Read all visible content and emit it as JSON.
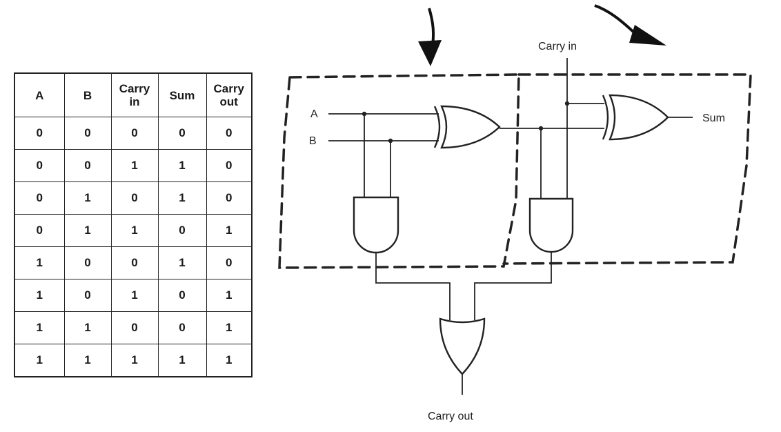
{
  "truth_table": {
    "headers": [
      "A",
      "B",
      "Carry\nin",
      "Sum",
      "Carry\nout"
    ],
    "rows": [
      [
        "0",
        "0",
        "0",
        "0",
        "0"
      ],
      [
        "0",
        "0",
        "1",
        "1",
        "0"
      ],
      [
        "0",
        "1",
        "0",
        "1",
        "0"
      ],
      [
        "0",
        "1",
        "1",
        "0",
        "1"
      ],
      [
        "1",
        "0",
        "0",
        "1",
        "0"
      ],
      [
        "1",
        "0",
        "1",
        "0",
        "1"
      ],
      [
        "1",
        "1",
        "0",
        "0",
        "1"
      ],
      [
        "1",
        "1",
        "1",
        "1",
        "1"
      ]
    ]
  },
  "circuit": {
    "input_a_label": "A",
    "input_b_label": "B",
    "carry_in_label": "Carry in",
    "sum_label": "Sum",
    "carry_out_label": "Carry out"
  }
}
